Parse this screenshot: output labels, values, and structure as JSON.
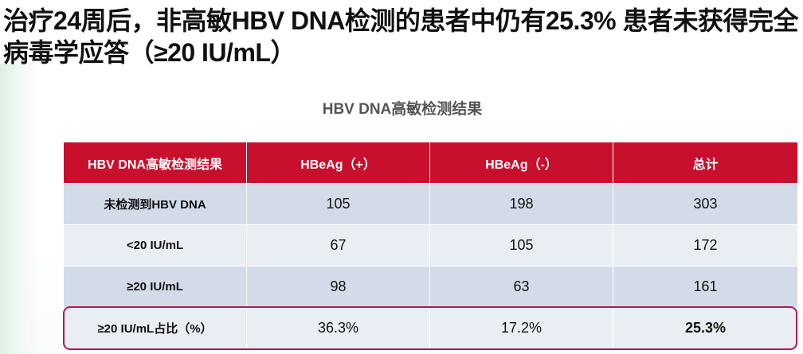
{
  "slide": {
    "title": "治疗24周后，非高敏HBV DNA检测的患者中仍有25.3% 患者未获得完全病毒学应答（≥20 IU/mL）"
  },
  "table": {
    "caption": "HBV DNA高敏检测结果",
    "headers": [
      "HBV DNA高敏检测结果",
      "HBeAg（+）",
      "HBeAg（-）",
      "总计"
    ],
    "rows": [
      [
        "未检测到HBV DNA",
        "105",
        "198",
        "303"
      ],
      [
        "<20 IU/mL",
        "67",
        "105",
        "172"
      ],
      [
        "≥20 IU/mL",
        "98",
        "63",
        "161"
      ],
      [
        "≥20 IU/mL占比（%）",
        "36.3%",
        "17.2%",
        "25.3%"
      ]
    ]
  },
  "colors": {
    "header_bg": "#c8102e",
    "row_dark": "#d3dbe9",
    "row_light": "#e9edf4",
    "highlight_border": "#b0185a",
    "emphasis_text": "#c8102e"
  }
}
